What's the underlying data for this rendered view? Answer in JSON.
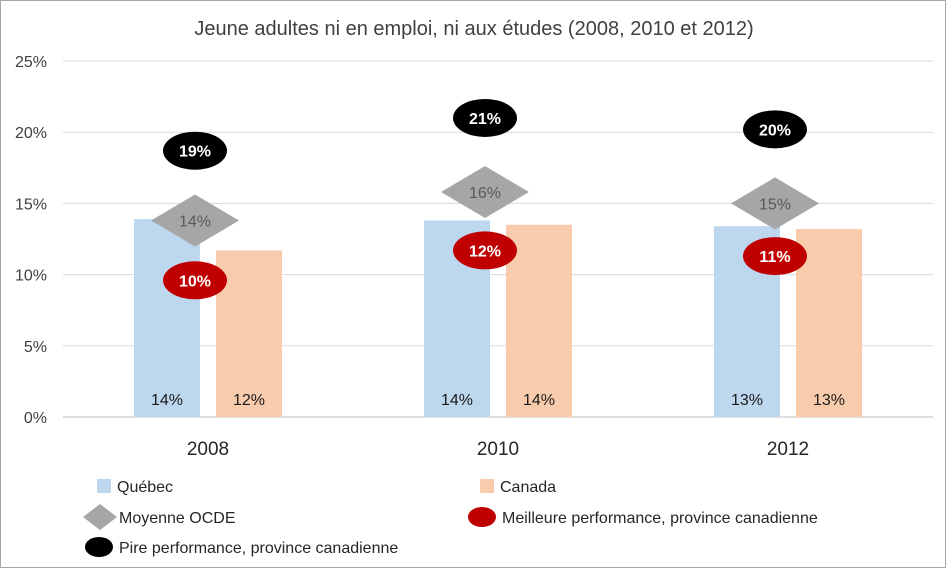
{
  "chart_data": {
    "type": "bar",
    "title": "Jeune adultes ni en emploi, ni aux études (2008, 2010 et 2012)",
    "categories": [
      "2008",
      "2010",
      "2012"
    ],
    "ylim": [
      0,
      25
    ],
    "yticks": [
      "0%",
      "5%",
      "10%",
      "15%",
      "20%",
      "25%"
    ],
    "series": [
      {
        "name": "Québec",
        "kind": "bar",
        "color": "#bdd7ee",
        "values": [
          13.9,
          13.8,
          13.4
        ],
        "labels": [
          "14%",
          "14%",
          "13%"
        ]
      },
      {
        "name": "Canada",
        "kind": "bar",
        "color": "#f8cbad",
        "values": [
          11.7,
          13.5,
          13.2
        ],
        "labels": [
          "12%",
          "14%",
          "13%"
        ]
      },
      {
        "name": "Moyenne OCDE",
        "kind": "marker-diamond",
        "color": "#a6a6a6",
        "text_color": "#595959",
        "values": [
          13.8,
          15.8,
          15.0
        ],
        "labels": [
          "14%",
          "16%",
          "15%"
        ]
      },
      {
        "name": "Meilleure performance, province canadienne",
        "kind": "marker-ellipse",
        "color": "#c00000",
        "text_color": "#ffffff",
        "values": [
          9.6,
          11.7,
          11.3
        ],
        "labels": [
          "10%",
          "12%",
          "11%"
        ]
      },
      {
        "name": "Pire performance, province canadienne",
        "kind": "marker-ellipse",
        "color": "#000000",
        "text_color": "#ffffff",
        "values": [
          18.7,
          21.0,
          20.2
        ],
        "labels": [
          "19%",
          "21%",
          "20%"
        ]
      }
    ],
    "grid": true,
    "legend_position": "bottom"
  }
}
